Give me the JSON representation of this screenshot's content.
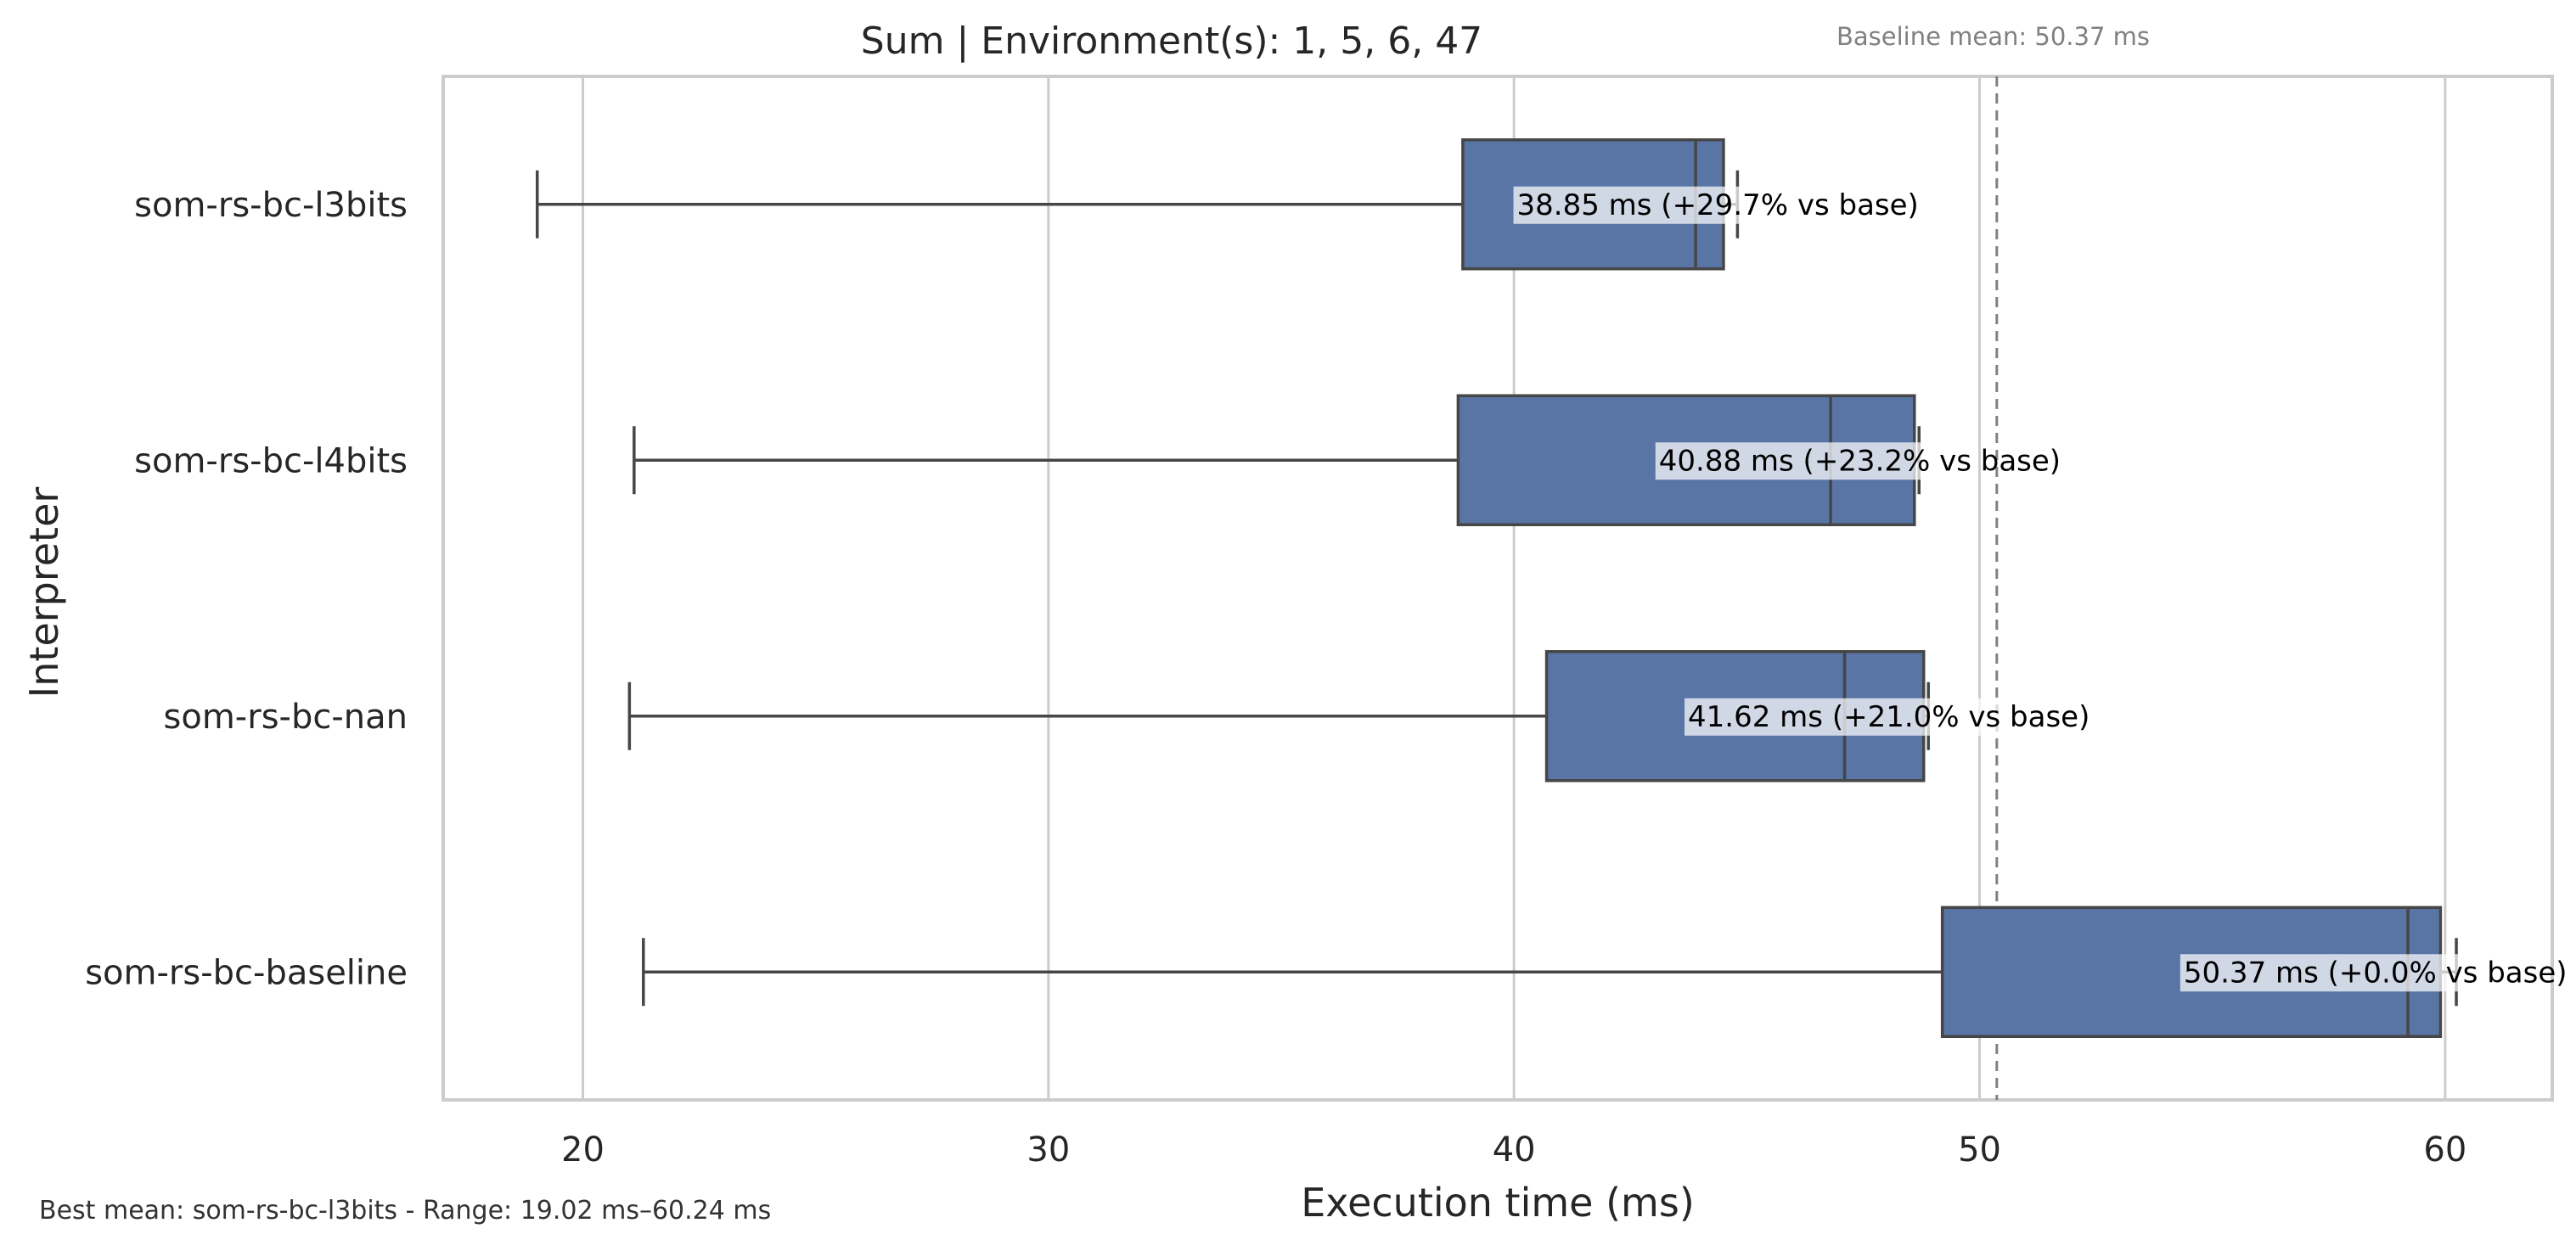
{
  "chart_data": {
    "type": "box",
    "orientation": "horizontal",
    "title": "Sum | Environment(s): 1, 5, 6, 47",
    "baseline_note": "Baseline mean: 50.37 ms",
    "baseline_mean": 50.37,
    "xlabel": "Execution time (ms)",
    "ylabel": "Interpreter",
    "xlim": [
      17,
      62.3
    ],
    "xticks": [
      20,
      30,
      40,
      50,
      60
    ],
    "grid": true,
    "box_color": "#5875a6",
    "categories": [
      "som-rs-bc-l3bits",
      "som-rs-bc-l4bits",
      "som-rs-bc-nan",
      "som-rs-bc-baseline"
    ],
    "boxes": [
      {
        "name": "som-rs-bc-l3bits",
        "whisker_low": 19.02,
        "q1": 38.9,
        "median": 43.9,
        "q3": 44.5,
        "whisker_high": 44.8,
        "label": "38.85 ms  (+29.7% vs base)"
      },
      {
        "name": "som-rs-bc-l4bits",
        "whisker_low": 21.1,
        "q1": 38.8,
        "median": 46.8,
        "q3": 48.6,
        "whisker_high": 48.7,
        "label": "40.88 ms  (+23.2% vs base)"
      },
      {
        "name": "som-rs-bc-nan",
        "whisker_low": 21.0,
        "q1": 40.7,
        "median": 47.1,
        "q3": 48.8,
        "whisker_high": 48.9,
        "label": "41.62 ms  (+21.0% vs base)"
      },
      {
        "name": "som-rs-bc-baseline",
        "whisker_low": 21.3,
        "q1": 49.2,
        "median": 59.2,
        "q3": 59.9,
        "whisker_high": 60.24,
        "label": "50.37 ms  (+0.0% vs base)"
      }
    ],
    "footer": "Best mean: som-rs-bc-l3bits - Range: 19.02 ms–60.24 ms"
  }
}
